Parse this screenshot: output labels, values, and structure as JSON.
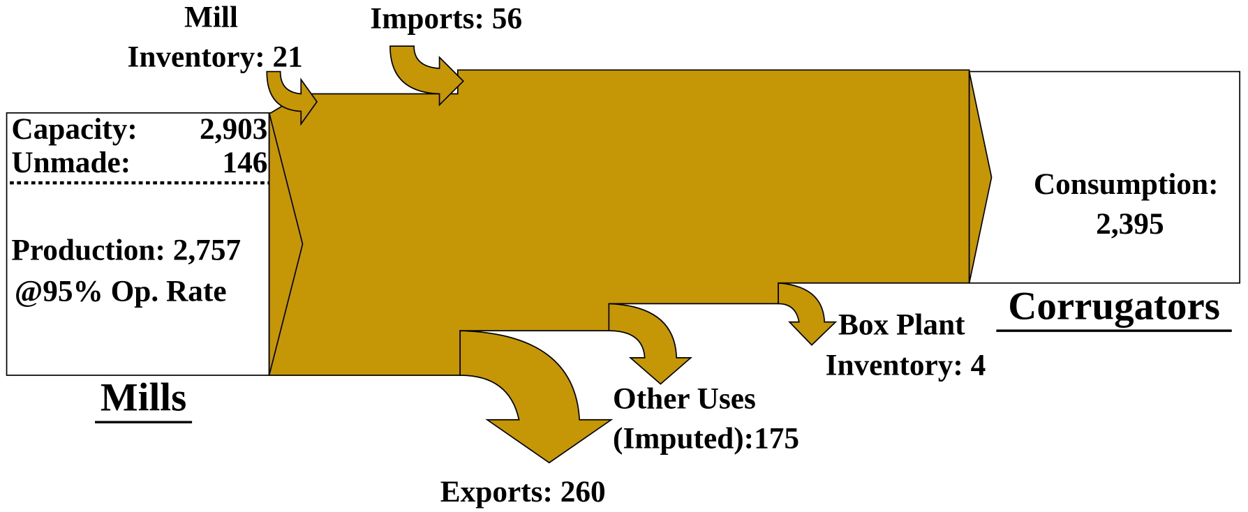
{
  "mills": {
    "title": "Mills",
    "capacity_label": "Capacity:",
    "capacity": "2,903",
    "unmade_label": "Unmade:",
    "unmade": "146",
    "production": "Production: 2,757",
    "rate": "@95% Op. Rate"
  },
  "corrugators": {
    "title": "Corrugators",
    "consumption_label": "Consumption:",
    "consumption": "2,395"
  },
  "flows": {
    "mill_inventory": [
      "Mill",
      "Inventory: 21"
    ],
    "imports": "Imports: 56",
    "exports": "Exports: 260",
    "other_uses": [
      "Other Uses",
      "(Imputed):175"
    ],
    "box_plant_inventory": [
      "Box Plant",
      "Inventory: 4"
    ]
  }
}
